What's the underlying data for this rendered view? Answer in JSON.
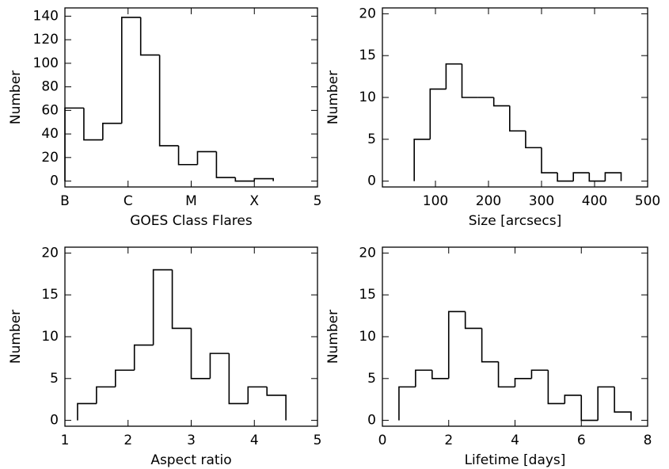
{
  "chart_data": [
    {
      "type": "histogram",
      "x_label": "GOES Class Flares",
      "y_label": "Number",
      "bins": [
        1,
        1.3,
        1.6,
        1.9,
        2.2,
        2.5,
        2.8,
        3.1,
        3.4,
        3.7,
        4.0,
        4.3
      ],
      "counts": [
        62,
        35,
        49,
        139,
        107,
        30,
        14,
        25,
        3,
        0,
        2
      ],
      "xlim": [
        1,
        5
      ],
      "xticks": [
        {
          "value": 1,
          "label": "B"
        },
        {
          "value": 2,
          "label": "C"
        },
        {
          "value": 3,
          "label": "M"
        },
        {
          "value": 4,
          "label": "X"
        },
        5
      ],
      "ylim": [
        -5,
        147
      ],
      "yticks": [
        0,
        20,
        40,
        60,
        80,
        100,
        120,
        140
      ],
      "color": "#000000"
    },
    {
      "type": "histogram",
      "x_label": "Size [arcsecs]",
      "y_label": "Number",
      "bins": [
        60,
        90,
        120,
        150,
        180,
        210,
        240,
        270,
        300,
        330,
        360,
        390,
        420,
        450
      ],
      "counts": [
        5,
        11,
        14,
        10,
        10,
        9,
        6,
        4,
        1,
        0,
        1,
        0,
        1
      ],
      "xlim": [
        0,
        500
      ],
      "xticks": [
        100,
        200,
        300,
        400,
        500
      ],
      "ylim": [
        -0.7,
        20.7
      ],
      "yticks": [
        0,
        5,
        10,
        15,
        20
      ],
      "color": "#000000"
    },
    {
      "type": "histogram",
      "x_label": "Aspect ratio",
      "y_label": "Number",
      "bins": [
        1.2,
        1.5,
        1.8,
        2.1,
        2.4,
        2.7,
        3.0,
        3.3,
        3.6,
        3.9,
        4.2,
        4.5
      ],
      "counts": [
        2,
        4,
        6,
        9,
        18,
        11,
        5,
        8,
        2,
        4,
        3
      ],
      "xlim": [
        1,
        5
      ],
      "xticks": [
        1,
        2,
        3,
        4,
        5
      ],
      "ylim": [
        -0.7,
        20.7
      ],
      "yticks": [
        0,
        5,
        10,
        15,
        20
      ],
      "color": "#000000"
    },
    {
      "type": "histogram",
      "x_label": "Lifetime [days]",
      "y_label": "Number",
      "bins": [
        0.5,
        1.0,
        1.5,
        2.0,
        2.5,
        3.0,
        3.5,
        4.0,
        4.5,
        5.0,
        5.5,
        6.0,
        6.5,
        7.0,
        7.5
      ],
      "counts": [
        4,
        6,
        5,
        13,
        11,
        7,
        4,
        5,
        6,
        2,
        3,
        0,
        4,
        1
      ],
      "xlim": [
        0,
        8
      ],
      "xticks": [
        0,
        2,
        4,
        6,
        8
      ],
      "ylim": [
        -0.7,
        20.7
      ],
      "yticks": [
        0,
        5,
        10,
        15,
        20
      ],
      "color": "#000000"
    }
  ]
}
